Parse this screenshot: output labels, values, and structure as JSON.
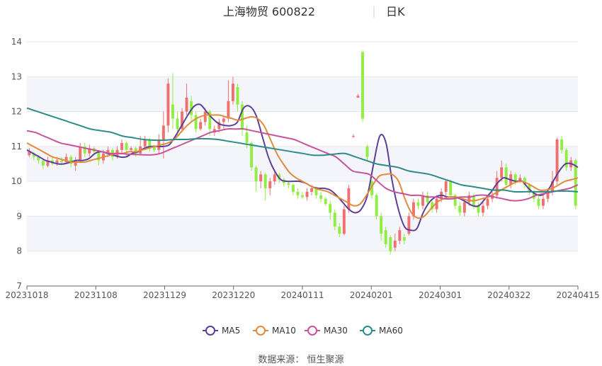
{
  "title": "上海物贸 600822",
  "period": "日K",
  "source": "数据来源： 恒生聚源",
  "chart_data": {
    "type": "candlestick",
    "y_ticks": [
      7,
      8,
      9,
      10,
      11,
      12,
      13,
      14
    ],
    "ylim": [
      7,
      14
    ],
    "x_ticks": [
      "20231018",
      "20231108",
      "20231129",
      "20231220",
      "20240111",
      "20240201",
      "20240301",
      "20240322",
      "20240415"
    ],
    "up_color": "#f07070",
    "down_color": "#90ee40",
    "band_color": "#f4f5fa",
    "series": [
      {
        "name": "MA5",
        "color": "#5b3f98",
        "values": [
          10.9,
          10.8,
          10.7,
          10.6,
          10.55,
          10.5,
          10.5,
          10.55,
          10.6,
          10.6,
          10.65,
          10.8,
          10.85,
          10.8,
          10.75,
          10.7,
          10.7,
          10.8,
          10.85,
          10.95,
          11.0,
          11.0,
          11.0,
          11.05,
          11.3,
          11.6,
          11.9,
          12.15,
          12.2,
          12.0,
          11.8,
          11.65,
          11.6,
          11.6,
          11.7,
          12.1,
          12.15,
          11.9,
          11.3,
          10.7,
          10.3,
          10.05,
          10.0,
          10.0,
          10.0,
          9.95,
          9.85,
          9.8,
          9.8,
          9.75,
          9.6,
          9.4,
          9.2,
          9.1,
          9.2,
          9.6,
          10.5,
          11.3,
          11.1,
          10.0,
          9.2,
          8.7,
          8.6,
          8.65,
          9.1,
          9.4,
          9.55,
          9.6,
          9.55,
          9.55,
          9.5,
          9.4,
          9.3,
          9.3,
          9.5,
          9.7,
          9.95,
          10.1,
          10.05,
          10.0,
          10.0,
          9.8,
          9.65,
          9.6,
          9.7,
          10.0,
          10.3,
          10.5,
          10.5,
          10.4
        ]
      },
      {
        "name": "MA10",
        "color": "#e28b3c",
        "values": [
          11.1,
          11.0,
          10.9,
          10.8,
          10.7,
          10.65,
          10.6,
          10.55,
          10.55,
          10.55,
          10.6,
          10.65,
          10.7,
          10.75,
          10.8,
          10.8,
          10.85,
          10.85,
          10.9,
          10.95,
          11.0,
          11.05,
          11.1,
          11.2,
          11.4,
          11.6,
          11.75,
          11.85,
          11.9,
          11.9,
          11.9,
          11.85,
          11.8,
          11.75,
          11.8,
          11.85,
          11.8,
          11.6,
          11.2,
          10.8,
          10.5,
          10.25,
          10.1,
          10.0,
          9.9,
          9.8,
          9.75,
          9.7,
          9.6,
          9.5,
          9.4,
          9.3,
          9.35,
          9.6,
          9.9,
          10.15,
          10.2,
          10.2,
          10.0,
          9.5,
          9.1,
          8.95,
          9.0,
          9.2,
          9.4,
          9.5,
          9.55,
          9.55,
          9.5,
          9.45,
          9.45,
          9.5,
          9.55,
          9.65,
          9.75,
          9.85,
          9.95,
          10.0,
          9.95,
          9.85,
          9.75,
          9.75,
          9.8,
          9.9,
          10.0,
          10.05,
          10.1
        ]
      },
      {
        "name": "MA30",
        "color": "#c8539c",
        "values": [
          11.45,
          11.4,
          11.3,
          11.2,
          11.1,
          11.05,
          11.0,
          10.95,
          10.9,
          10.85,
          10.8,
          10.8,
          10.78,
          10.77,
          10.76,
          10.76,
          10.8,
          10.9,
          11.0,
          11.1,
          11.2,
          11.3,
          11.4,
          11.45,
          11.5,
          11.5,
          11.5,
          11.45,
          11.4,
          11.35,
          11.3,
          11.25,
          11.2,
          11.1,
          11.0,
          10.9,
          10.8,
          10.7,
          10.5,
          10.3,
          10.25,
          10.2,
          10.0,
          9.8,
          9.7,
          9.65,
          9.6,
          9.6,
          9.55,
          9.55,
          9.5,
          9.5,
          9.55,
          9.55,
          9.6,
          9.6,
          9.55,
          9.5,
          9.45,
          9.45,
          9.5,
          9.6,
          9.65,
          9.7,
          9.75,
          9.8,
          9.9
        ]
      },
      {
        "name": "MA60",
        "color": "#2e8b8b",
        "values": [
          12.1,
          12.0,
          11.9,
          11.8,
          11.7,
          11.6,
          11.5,
          11.45,
          11.4,
          11.3,
          11.25,
          11.2,
          11.18,
          11.18,
          11.2,
          11.2,
          11.22,
          11.22,
          11.2,
          11.15,
          11.1,
          11.05,
          11.0,
          10.95,
          10.9,
          10.85,
          10.8,
          10.75,
          10.75,
          10.78,
          10.8,
          10.7,
          10.6,
          10.5,
          10.45,
          10.4,
          10.3,
          10.25,
          10.2,
          10.1,
          10.0,
          9.9,
          9.85,
          9.8,
          9.75,
          9.75,
          9.7,
          9.7,
          9.7,
          9.7,
          9.72,
          9.72,
          9.7
        ]
      }
    ],
    "candles": [
      [
        10.75,
        10.85,
        10.95,
        10.7
      ],
      [
        10.8,
        10.7,
        10.85,
        10.6
      ],
      [
        10.7,
        10.6,
        10.75,
        10.5
      ],
      [
        10.6,
        10.45,
        10.65,
        10.35
      ],
      [
        10.45,
        10.6,
        10.7,
        10.4
      ],
      [
        10.6,
        10.5,
        10.7,
        10.45
      ],
      [
        10.5,
        10.6,
        10.7,
        10.45
      ],
      [
        10.6,
        10.55,
        10.7,
        10.5
      ],
      [
        10.55,
        10.7,
        10.8,
        10.5
      ],
      [
        10.7,
        10.5,
        10.75,
        10.4
      ],
      [
        10.45,
        10.6,
        10.7,
        10.3
      ],
      [
        10.6,
        11.0,
        11.1,
        10.55
      ],
      [
        11.0,
        10.8,
        11.1,
        10.7
      ],
      [
        10.8,
        10.95,
        11.05,
        10.7
      ],
      [
        10.95,
        10.85,
        11.0,
        10.8
      ],
      [
        10.85,
        10.6,
        10.9,
        10.45
      ],
      [
        10.6,
        10.8,
        10.9,
        10.5
      ],
      [
        10.8,
        10.9,
        11.0,
        10.7
      ],
      [
        10.9,
        10.7,
        10.95,
        10.6
      ],
      [
        10.7,
        10.9,
        11.0,
        10.65
      ],
      [
        10.9,
        11.1,
        11.2,
        10.8
      ],
      [
        11.1,
        10.9,
        11.15,
        10.8
      ],
      [
        10.9,
        10.95,
        11.0,
        10.85
      ],
      [
        10.95,
        10.8,
        11.0,
        10.7
      ],
      [
        10.8,
        11.0,
        11.3,
        10.75
      ],
      [
        11.0,
        11.2,
        11.3,
        10.9
      ],
      [
        11.2,
        11.0,
        11.25,
        10.85
      ],
      [
        11.0,
        10.9,
        11.05,
        10.85
      ],
      [
        10.9,
        11.2,
        11.35,
        10.8
      ],
      [
        11.2,
        11.6,
        12.0,
        10.65
      ],
      [
        11.6,
        12.8,
        12.95,
        11.4
      ],
      [
        12.2,
        11.8,
        13.1,
        11.5
      ],
      [
        11.8,
        11.5,
        12.0,
        11.3
      ],
      [
        11.5,
        12.0,
        12.1,
        11.4
      ],
      [
        12.0,
        12.4,
        12.8,
        11.9
      ],
      [
        12.3,
        11.9,
        12.45,
        11.7
      ],
      [
        11.9,
        11.5,
        12.0,
        11.4
      ],
      [
        11.5,
        11.7,
        11.8,
        11.45
      ],
      [
        11.7,
        12.0,
        12.1,
        11.6
      ],
      [
        12.0,
        11.5,
        12.05,
        11.3
      ],
      [
        11.4,
        11.5,
        11.6,
        11.3
      ],
      [
        11.5,
        11.7,
        11.8,
        11.4
      ],
      [
        11.7,
        11.8,
        11.85,
        11.5
      ],
      [
        11.8,
        12.3,
        12.9,
        11.7
      ],
      [
        12.3,
        12.8,
        13.0,
        12.2
      ],
      [
        12.7,
        12.2,
        12.8,
        12.0
      ],
      [
        12.2,
        11.5,
        12.3,
        11.3
      ],
      [
        11.4,
        11.1,
        11.6,
        10.95
      ],
      [
        11.1,
        10.4,
        11.15,
        10.3
      ],
      [
        10.4,
        10.0,
        10.45,
        9.7
      ],
      [
        10.0,
        10.2,
        10.3,
        9.8
      ],
      [
        10.2,
        9.8,
        10.25,
        9.45
      ],
      [
        9.8,
        10.0,
        10.1,
        9.6
      ],
      [
        10.0,
        10.2,
        10.3,
        9.9
      ],
      [
        10.2,
        10.05,
        10.25,
        9.95
      ],
      [
        10.05,
        9.95,
        10.1,
        9.85
      ],
      [
        9.95,
        9.9,
        10.0,
        9.8
      ],
      [
        9.9,
        9.7,
        9.95,
        9.6
      ],
      [
        9.7,
        9.6,
        9.8,
        9.5
      ],
      [
        9.6,
        9.55,
        9.7,
        9.5
      ],
      [
        9.55,
        9.7,
        9.8,
        9.45
      ],
      [
        9.7,
        9.8,
        9.9,
        9.6
      ],
      [
        9.8,
        9.6,
        9.85,
        9.5
      ],
      [
        9.6,
        9.5,
        9.7,
        9.4
      ],
      [
        9.5,
        9.35,
        9.55,
        9.3
      ],
      [
        9.35,
        9.1,
        9.45,
        8.9
      ],
      [
        9.1,
        8.7,
        9.2,
        8.6
      ],
      [
        8.7,
        8.5,
        8.8,
        8.4
      ],
      [
        8.5,
        9.2,
        9.3,
        8.45
      ],
      [
        9.2,
        9.8,
        9.9,
        9.1
      ],
      [
        11.3,
        11.3,
        11.35,
        11.25
      ],
      [
        12.4,
        12.45,
        12.5,
        12.4
      ],
      [
        13.7,
        11.8,
        13.75,
        11.7
      ],
      [
        11.0,
        10.7,
        11.05,
        10.6
      ],
      [
        10.0,
        9.6,
        10.05,
        9.5
      ],
      [
        9.6,
        9.0,
        9.65,
        8.9
      ],
      [
        9.0,
        8.5,
        9.1,
        8.3
      ],
      [
        8.6,
        8.2,
        8.7,
        8.1
      ],
      [
        8.4,
        8.0,
        8.45,
        7.9
      ],
      [
        8.1,
        8.3,
        8.5,
        8.0
      ],
      [
        8.3,
        8.6,
        8.7,
        8.2
      ],
      [
        8.4,
        8.3,
        8.5,
        8.2
      ],
      [
        8.5,
        9.0,
        9.1,
        8.45
      ],
      [
        9.0,
        9.4,
        9.5,
        8.9
      ],
      [
        9.4,
        9.3,
        9.5,
        9.2
      ],
      [
        9.3,
        9.6,
        9.7,
        9.2
      ],
      [
        9.6,
        9.4,
        9.7,
        9.3
      ],
      [
        9.4,
        9.2,
        9.5,
        9.1
      ],
      [
        9.2,
        9.5,
        9.6,
        9.1
      ],
      [
        9.5,
        9.7,
        9.8,
        9.4
      ],
      [
        9.7,
        10.0,
        10.05,
        9.6
      ],
      [
        10.0,
        9.6,
        10.05,
        9.5
      ],
      [
        9.6,
        9.3,
        9.65,
        9.2
      ],
      [
        9.3,
        9.1,
        9.4,
        9.0
      ],
      [
        9.1,
        9.4,
        9.5,
        9.0
      ],
      [
        9.4,
        9.6,
        9.7,
        9.3
      ],
      [
        9.6,
        9.3,
        9.65,
        9.2
      ],
      [
        9.3,
        9.1,
        9.4,
        9.0
      ],
      [
        9.1,
        9.3,
        9.4,
        9.0
      ],
      [
        9.3,
        9.5,
        9.6,
        9.2
      ],
      [
        9.5,
        9.6,
        9.7,
        9.4
      ],
      [
        9.6,
        10.1,
        10.3,
        9.5
      ],
      [
        10.1,
        10.4,
        10.6,
        10.0
      ],
      [
        10.4,
        9.9,
        10.5,
        9.8
      ],
      [
        9.9,
        10.2,
        10.3,
        9.8
      ],
      [
        10.2,
        10.0,
        10.25,
        9.9
      ],
      [
        10.0,
        10.1,
        10.2,
        9.95
      ],
      [
        10.1,
        9.9,
        10.15,
        9.8
      ],
      [
        9.9,
        9.7,
        9.95,
        9.6
      ],
      [
        9.7,
        9.5,
        9.75,
        9.4
      ],
      [
        9.5,
        9.3,
        9.6,
        9.2
      ],
      [
        9.3,
        9.5,
        9.6,
        9.2
      ],
      [
        9.5,
        9.7,
        9.8,
        9.4
      ],
      [
        9.7,
        10.0,
        10.3,
        9.6
      ],
      [
        10.0,
        11.2,
        11.25,
        9.9
      ],
      [
        11.2,
        10.9,
        11.3,
        10.8
      ],
      [
        10.9,
        10.4,
        10.95,
        10.3
      ],
      [
        10.4,
        10.6,
        10.7,
        10.3
      ],
      [
        10.6,
        9.3,
        10.65,
        9.2
      ]
    ]
  },
  "legend": [
    {
      "label": "MA5",
      "color": "#5b3f98"
    },
    {
      "label": "MA10",
      "color": "#e28b3c"
    },
    {
      "label": "MA30",
      "color": "#c8539c"
    },
    {
      "label": "MA60",
      "color": "#2e8b8b"
    }
  ]
}
